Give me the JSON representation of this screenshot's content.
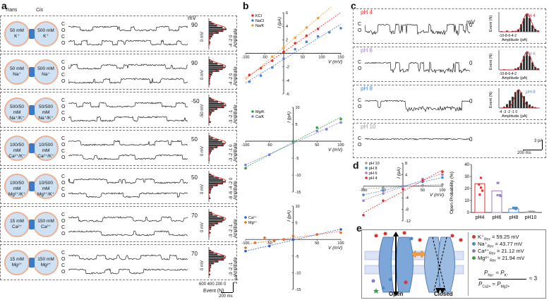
{
  "panel_a": {
    "label": "a",
    "trans": "Trans",
    "cis": "Cis",
    "hist_axis_title": "Amplitude",
    "trace_C": "C",
    "trace_O": "O",
    "rows": [
      {
        "trans": "50 mM\nK⁺",
        "cis": "500 mM\nK⁺",
        "mv": "90",
        "zero": "0 mV",
        "hist_ticks": "-4 -2 0"
      },
      {
        "trans": "50 mM\nNa⁺",
        "cis": "500 mM\nNa⁺",
        "mv": "90",
        "zero": "0 mV",
        "hist_ticks": "-4 -2 0"
      },
      {
        "trans": "500/50\nmM\nNa⁺/K⁺",
        "cis": "50/500\nmM\nNa⁺/K⁺",
        "mv": "-50",
        "zero": "-50 mV",
        "hist_ticks": "-3 -2 -1"
      },
      {
        "trans": "100/50\nmM\nCa²⁺/K⁺",
        "cis": "10/500\nmM\nCa²⁺/K⁺",
        "mv": "50",
        "zero": "0 mV",
        "hist_ticks": "-3 -2 -1 0"
      },
      {
        "trans": "100/50\nmM\nMg²⁺/K⁺",
        "cis": "10/500\nmM\nMg²⁺/K⁺",
        "mv": "50",
        "zero": "0 mV",
        "hist_ticks": "-8 -6 -4 -2 0"
      },
      {
        "trans": "15 mM\nCa²⁺",
        "cis": "150 mM\nCa²⁺",
        "mv": "70",
        "zero": "0 mV",
        "hist_ticks": "-3 -2 -1"
      },
      {
        "trans": "15 mM\nMg²⁺",
        "cis": "150 mM\nMg²⁺",
        "mv": "70",
        "zero": "0 mV",
        "hist_ticks": "-3 -2 -1"
      }
    ],
    "mv_header": "mV",
    "event_axis": "Event (N)",
    "hist_x_ticks": [
      "600",
      "400",
      "200",
      "0"
    ],
    "scale_time": "200 ms",
    "scale_amp": "2 pA"
  },
  "panel_b": {
    "label": "b",
    "chart_data": [
      {
        "type": "scatter",
        "title": "",
        "xlabel": "V (mV)",
        "ylabel": "I (pA)",
        "xlim": [
          -100,
          150
        ],
        "ylim": [
          -6,
          6
        ],
        "x_ticks": [
          "-100",
          "-50",
          "50",
          "100",
          "150"
        ],
        "y_ticks": [
          "6",
          "4",
          "2",
          "-2",
          "-4",
          "-6"
        ],
        "series": [
          {
            "name": "KCl",
            "color": "#e03030",
            "x": [
              -90,
              -60,
              -30,
              0,
              30,
              60,
              90
            ],
            "y": [
              -3.2,
              -2.2,
              -1.1,
              0.2,
              1.5,
              2.6,
              3.6
            ]
          },
          {
            "name": "NaCl",
            "color": "#4a7fd4",
            "x": [
              -90,
              -60,
              -30,
              0,
              30,
              60,
              90,
              120,
              150
            ],
            "y": [
              -4.2,
              -3.3,
              -2.1,
              -0.8,
              0.6,
              1.7,
              2.5,
              3.1,
              3.7
            ]
          },
          {
            "name": "Na/K",
            "color": "#f0a030",
            "x": [
              -30,
              0,
              30,
              60,
              90
            ],
            "y": [
              -0.5,
              0.8,
              2.3,
              3.8,
              5.2
            ]
          }
        ]
      },
      {
        "type": "scatter",
        "title": "",
        "xlabel": "V (mV)",
        "ylabel": "I (pA)",
        "xlim": [
          -100,
          100
        ],
        "ylim": [
          -15,
          10
        ],
        "x_ticks": [
          "-100",
          "-50",
          "50",
          "100"
        ],
        "y_ticks": [
          "10",
          "5",
          "-5",
          "-10",
          "-15"
        ],
        "series": [
          {
            "name": "Mg/K",
            "color": "#30a040",
            "x": [
              -100,
              -50,
              0,
              50,
              100
            ],
            "y": [
              -8,
              -4,
              0,
              4,
              6.5
            ]
          },
          {
            "name": "Ca/K",
            "color": "#8080d0",
            "x": [
              -100,
              -50,
              0,
              50,
              70,
              100
            ],
            "y": [
              -7,
              -4,
              -0.5,
              3,
              3.5,
              5.5
            ]
          }
        ]
      },
      {
        "type": "scatter",
        "title": "",
        "xlabel": "V (mV)",
        "ylabel": "I (pA)",
        "xlim": [
          -100,
          100
        ],
        "ylim": [
          -15,
          10
        ],
        "x_ticks": [
          "-100",
          "-50",
          "50",
          "100"
        ],
        "y_ticks": [
          "10",
          "5",
          "-5",
          "-10",
          "-15"
        ],
        "series": [
          {
            "name": "Ca²⁺",
            "color": "#3060c0",
            "x": [
              -100,
              -50,
              0,
              50,
              100
            ],
            "y": [
              -3.5,
              -2,
              0,
              1.5,
              3
            ]
          },
          {
            "name": "Mg²⁺",
            "color": "#e07030",
            "x": [
              -100,
              -80,
              -60,
              -40,
              -20,
              0,
              50,
              100
            ],
            "y": [
              -2.5,
              -1,
              0.5,
              -0.5,
              0,
              1,
              1.5,
              2
            ]
          }
        ]
      }
    ]
  },
  "panel_c": {
    "label": "c",
    "mv_header": "mV",
    "rows": [
      {
        "ph": "pH 4",
        "color": "#e03030",
        "mv": "0"
      },
      {
        "ph": "pH 6",
        "color": "#a080c0",
        "mv": "0"
      },
      {
        "ph": "pH 8",
        "color": "#4a8ad0",
        "mv": "0"
      },
      {
        "ph": "pH 10",
        "color": "#999999",
        "mv": "0"
      }
    ],
    "hist_ylabel": "Event (N)",
    "hist_xlabel": "Amplitude (pA)",
    "hist_ticks_a": "-10-8-6-4-2",
    "hist_ticks_b": "-4 -3 -2 -1 0",
    "scale_amp": "3 pA",
    "scale_time": "200 ms"
  },
  "panel_d": {
    "label": "d",
    "chart_data": [
      {
        "type": "scatter",
        "xlabel": "V (mV)",
        "ylabel": "I (pA)",
        "xlim": [
          -100,
          100
        ],
        "ylim": [
          -12,
          8
        ],
        "x_ticks": [
          "-100",
          "-50",
          "50",
          "100"
        ],
        "y_ticks": [
          "8",
          "4",
          "-4",
          "-8",
          "-12"
        ],
        "series": [
          {
            "name": "pH 10",
            "color": "#999999",
            "x": [
              -100,
              -50,
              0,
              50,
              100
            ],
            "y": [
              -1,
              -0.5,
              0,
              0.3,
              0.6
            ]
          },
          {
            "name": "pH 8",
            "color": "#4a8ad0",
            "x": [
              -100,
              -50,
              0,
              50,
              100
            ],
            "y": [
              -3,
              -1.5,
              0,
              1.5,
              3
            ]
          },
          {
            "name": "pH 6",
            "color": "#a080c0",
            "x": [
              -100,
              -50,
              0,
              50,
              100
            ],
            "y": [
              -5,
              -2.5,
              0,
              2.5,
              4
            ]
          },
          {
            "name": "pH 4",
            "color": "#e03030",
            "x": [
              -100,
              -50,
              0,
              50,
              100
            ],
            "y": [
              -10,
              -5,
              -1,
              2,
              5
            ]
          }
        ]
      },
      {
        "type": "bar",
        "categories": [
          "pH4",
          "pH6",
          "pH8",
          "pH10"
        ],
        "values": [
          24,
          18,
          3,
          0.5
        ],
        "ylabel": "Open Probability (%)",
        "ylim": [
          0,
          40
        ],
        "y_ticks": [
          "40",
          "30",
          "20",
          "10",
          "0"
        ],
        "colors": [
          "#e03030",
          "#a080c0",
          "#4a8ad0",
          "#999999"
        ]
      }
    ]
  },
  "panel_e": {
    "label": "e",
    "open_label": "Open",
    "closed_label": "Closed",
    "rev_items": [
      {
        "ion": "K⁺",
        "sub": "Rev",
        "value": "= 59.25 mV",
        "color": "#e03030"
      },
      {
        "ion": "Na⁺",
        "sub": "Rev",
        "value": "= 43.77 mV",
        "color": "#4a8ad0"
      },
      {
        "ion": "Ca²⁺",
        "sub": "Rev",
        "value": "= 21.12 mV",
        "color": "#8080d0"
      },
      {
        "ion": "Mg²⁺",
        "sub": "Rev",
        "value": "= 21.94 mV",
        "color": "#30a040"
      }
    ],
    "formula_top_left": "P",
    "formula_top_left_sub": "Na⁺",
    "formula_top_right": "P",
    "formula_top_right_sub": "K⁺",
    "formula_bottom_left": "P",
    "formula_bottom_left_sub": "Ca2+",
    "formula_bottom_right": "P",
    "formula_bottom_right_sub": "Mg2+",
    "approx": "≈",
    "result": "3"
  }
}
